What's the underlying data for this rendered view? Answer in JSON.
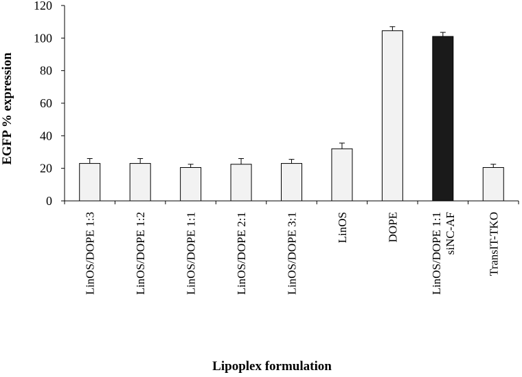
{
  "chart_data": {
    "type": "bar",
    "xlabel": "Lipoplex formulation",
    "ylabel": "EGFP % expression",
    "ylim": [
      0,
      120
    ],
    "yticks": [
      0,
      20,
      40,
      60,
      80,
      100,
      120
    ],
    "grid": false,
    "categories": [
      [
        "LinOS/DOPE 1:3"
      ],
      [
        "LinOS/DOPE 1:2"
      ],
      [
        "LinOS/DOPE 1:1"
      ],
      [
        "LinOS/DOPE 2:1"
      ],
      [
        "LinOS/DOPE 3:1"
      ],
      [
        "LinOS"
      ],
      [
        "DOPE"
      ],
      [
        "LinOS/DOPE 1:1",
        "siNC-AF"
      ],
      [
        "TransIT-TKO"
      ]
    ],
    "values": [
      23,
      23,
      20.5,
      22.5,
      23,
      32,
      104.5,
      101,
      20.5
    ],
    "errors": [
      3,
      3,
      2,
      3.5,
      2.5,
      3.5,
      2.5,
      2.5,
      2
    ],
    "bar_colors": [
      "#f2f2f2",
      "#f2f2f2",
      "#f2f2f2",
      "#f2f2f2",
      "#f2f2f2",
      "#f2f2f2",
      "#f2f2f2",
      "#1a1a1a",
      "#f2f2f2"
    ]
  }
}
